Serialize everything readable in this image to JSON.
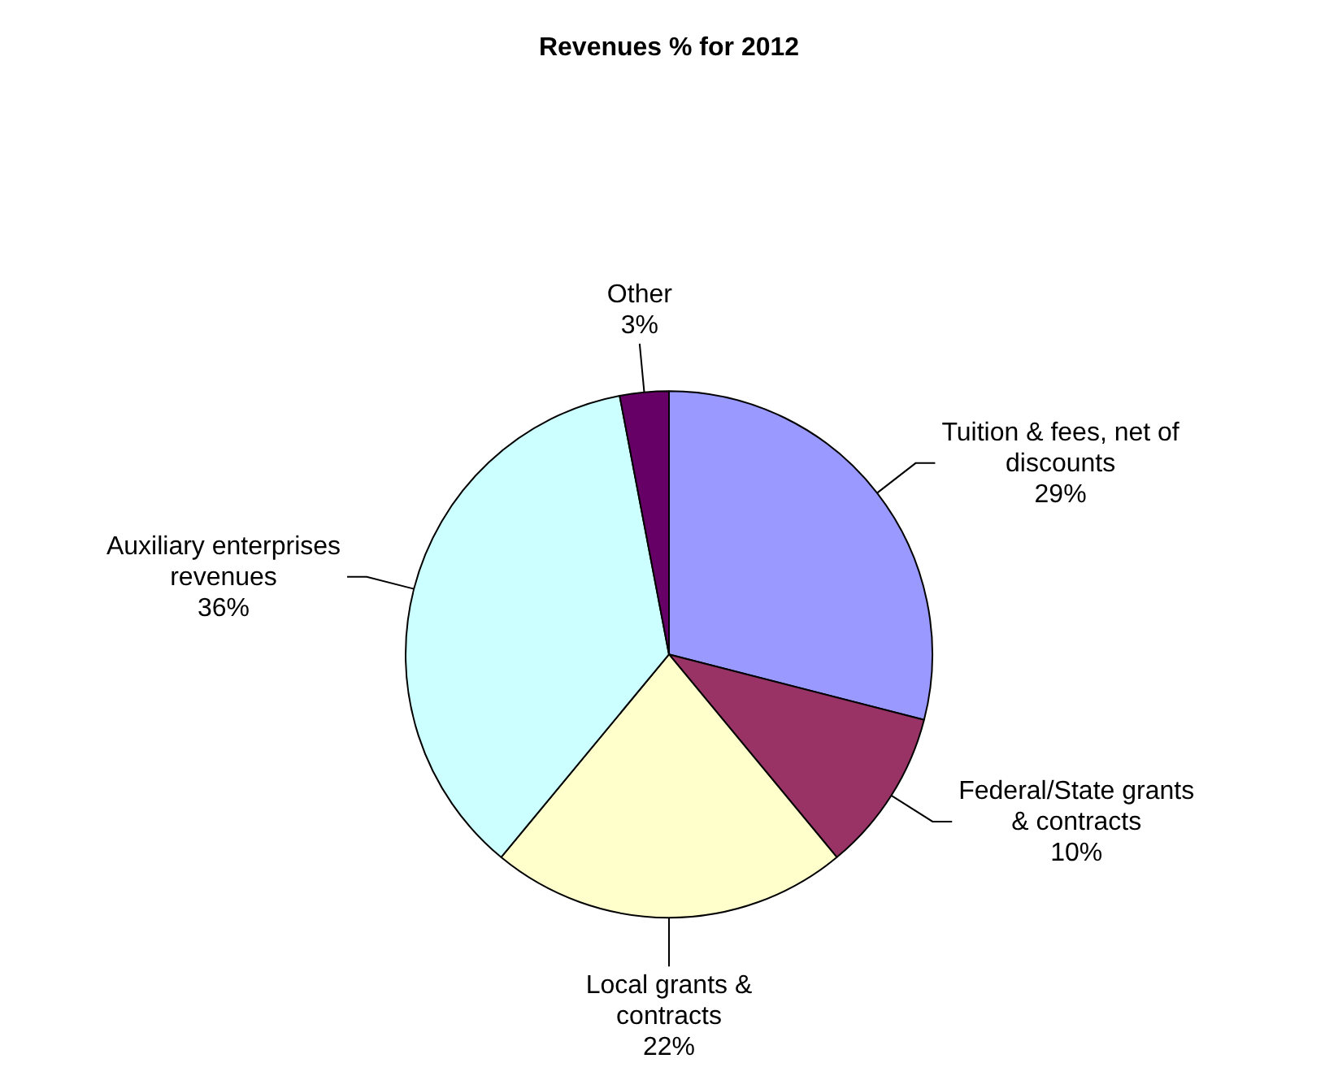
{
  "chart_data": {
    "type": "pie",
    "title": "Revenues % for 2012",
    "categories": [
      "Tuition & fees, net of discounts",
      "Federal/State grants & contracts",
      "Local grants & contracts",
      "Auxiliary enterprises revenues",
      "Other"
    ],
    "values": [
      29,
      10,
      22,
      36,
      3
    ],
    "value_labels": [
      "29%",
      "10%",
      "22%",
      "36%",
      "3%"
    ],
    "colors": [
      "#9999ff",
      "#993366",
      "#ffffcc",
      "#ccffff",
      "#660066"
    ],
    "legend": false
  }
}
